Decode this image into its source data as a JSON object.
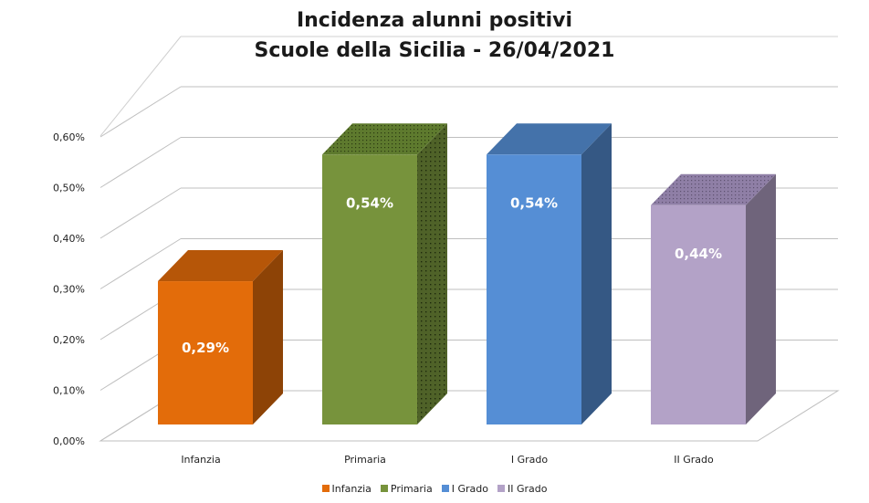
{
  "chart_data": {
    "type": "bar",
    "title_line1": "Incidenza alunni positivi",
    "title_line2": "Scuole della Sicilia - 26/04/2021",
    "categories": [
      "Infanzia",
      "Primaria",
      "I Grado",
      "II Grado"
    ],
    "values": [
      0.29,
      0.54,
      0.54,
      0.44
    ],
    "data_labels": [
      "0,29%",
      "0,54%",
      "0,54%",
      "0,44%"
    ],
    "ylim": [
      0,
      0.6
    ],
    "yticks": [
      0,
      0.1,
      0.2,
      0.3,
      0.4,
      0.5,
      0.6
    ],
    "ytick_labels": [
      "0,00%",
      "0,10%",
      "0,20%",
      "0,30%",
      "0,40%",
      "0,50%",
      "0,60%"
    ],
    "grid": true,
    "legend_position": "bottom",
    "legend": [
      "Infanzia",
      "Primaria",
      "I Grado",
      "II Grado"
    ],
    "colors": {
      "Infanzia": "#E36C0A",
      "Primaria": "#77933C",
      "I Grado": "#558ED5",
      "II Grado": "#B3A2C7"
    }
  }
}
